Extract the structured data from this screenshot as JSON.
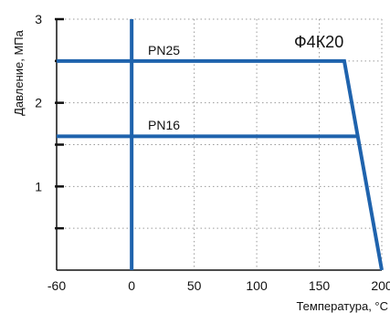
{
  "chart_data": {
    "type": "line",
    "title": "Ф4К20",
    "xlabel": "Температура, °С",
    "ylabel": "Давление, МПа",
    "xlim": [
      -60,
      200
    ],
    "ylim": [
      0,
      3
    ],
    "x_ticks": [
      -60,
      0,
      50,
      100,
      150,
      200
    ],
    "y_ticks": [
      1,
      2,
      3
    ],
    "y_minor_ticks": [
      0.5,
      1.5,
      2.5
    ],
    "grid": true,
    "series": [
      {
        "name": "PN25",
        "x": [
          -60,
          170,
          200
        ],
        "y": [
          2.5,
          2.5,
          0
        ]
      },
      {
        "name": "PN16",
        "x": [
          -60,
          180
        ],
        "y": [
          1.6,
          1.6
        ]
      }
    ],
    "reference_line_x": 0
  },
  "colors": {
    "series": "#1f63ad",
    "axis": "#111111",
    "grid": "#9a9a9a"
  }
}
